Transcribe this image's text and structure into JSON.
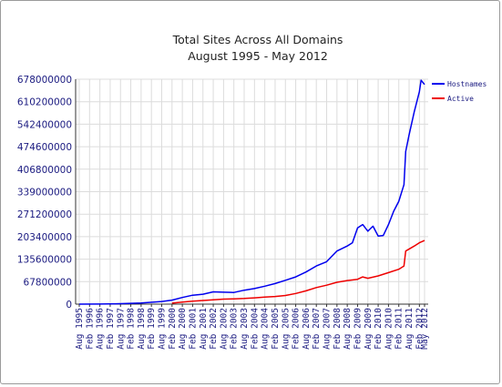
{
  "chart_data": {
    "type": "line",
    "title": "Total Sites Across All Domains",
    "subtitle": "August 1995 - May 2012",
    "ylim": [
      0,
      678000000
    ],
    "y_ticks": [
      0,
      67800000,
      135600000,
      203400000,
      271200000,
      339000000,
      406800000,
      474600000,
      542400000,
      610200000,
      678000000
    ],
    "y_tick_labels": [
      "0",
      "67800000",
      "135600000",
      "203400000",
      "271200000",
      "339000000",
      "406800000",
      "474600000",
      "542400000",
      "610200000",
      "678000000"
    ],
    "x_tick_labels": [
      "Aug 1995",
      "Feb 1996",
      "Aug 1996",
      "Feb 1997",
      "Aug 1997",
      "Feb 1998",
      "Aug 1998",
      "Feb 1999",
      "Aug 1999",
      "Feb 2000",
      "Aug 2000",
      "Feb 2001",
      "Aug 2001",
      "Feb 2002",
      "Aug 2002",
      "Feb 2003",
      "Aug 2003",
      "Feb 2004",
      "Aug 2004",
      "Feb 2005",
      "Aug 2005",
      "Feb 2006",
      "Aug 2006",
      "Feb 2007",
      "Aug 2007",
      "Feb 2008",
      "Aug 2008",
      "Feb 2009",
      "Aug 2009",
      "Feb 2010",
      "Aug 2010",
      "Feb 2011",
      "Aug 2011",
      "Feb 2012",
      "May 2012"
    ],
    "grid": true,
    "legend_position": "right",
    "series": [
      {
        "name": "Hostnames",
        "color": "#0000ee",
        "points": [
          [
            "1995-08",
            20000
          ],
          [
            "1996-08",
            300000
          ],
          [
            "1997-08",
            1500000
          ],
          [
            "1998-08",
            3500000
          ],
          [
            "1999-08",
            8000000
          ],
          [
            "2000-02",
            12000000
          ],
          [
            "2000-08",
            20000000
          ],
          [
            "2001-02",
            27000000
          ],
          [
            "2001-08",
            30000000
          ],
          [
            "2002-02",
            37000000
          ],
          [
            "2002-08",
            36000000
          ],
          [
            "2003-02",
            35000000
          ],
          [
            "2003-08",
            42000000
          ],
          [
            "2004-02",
            47000000
          ],
          [
            "2004-08",
            54000000
          ],
          [
            "2005-02",
            62000000
          ],
          [
            "2005-08",
            72000000
          ],
          [
            "2006-02",
            82000000
          ],
          [
            "2006-08",
            97000000
          ],
          [
            "2007-02",
            115000000
          ],
          [
            "2007-08",
            128000000
          ],
          [
            "2008-02",
            160000000
          ],
          [
            "2008-08",
            175000000
          ],
          [
            "2008-11",
            185000000
          ],
          [
            "2009-02",
            230000000
          ],
          [
            "2009-05",
            240000000
          ],
          [
            "2009-08",
            220000000
          ],
          [
            "2009-11",
            235000000
          ],
          [
            "2010-02",
            205000000
          ],
          [
            "2010-05",
            207000000
          ],
          [
            "2010-08",
            240000000
          ],
          [
            "2010-11",
            280000000
          ],
          [
            "2011-02",
            310000000
          ],
          [
            "2011-05",
            360000000
          ],
          [
            "2011-06",
            460000000
          ],
          [
            "2011-08",
            510000000
          ],
          [
            "2011-11",
            580000000
          ],
          [
            "2012-02",
            640000000
          ],
          [
            "2012-03",
            675000000
          ],
          [
            "2012-05",
            662000000
          ]
        ]
      },
      {
        "name": "Active",
        "color": "#ee0000",
        "points": [
          [
            "2000-02",
            3000000
          ],
          [
            "2000-08",
            6000000
          ],
          [
            "2001-02",
            9000000
          ],
          [
            "2001-08",
            11000000
          ],
          [
            "2002-02",
            13000000
          ],
          [
            "2002-08",
            15000000
          ],
          [
            "2003-02",
            16000000
          ],
          [
            "2003-08",
            17000000
          ],
          [
            "2004-02",
            19000000
          ],
          [
            "2004-08",
            21000000
          ],
          [
            "2005-02",
            23000000
          ],
          [
            "2005-08",
            26000000
          ],
          [
            "2006-02",
            32000000
          ],
          [
            "2006-08",
            40000000
          ],
          [
            "2007-02",
            50000000
          ],
          [
            "2007-08",
            57000000
          ],
          [
            "2008-02",
            66000000
          ],
          [
            "2008-08",
            71000000
          ],
          [
            "2009-02",
            75000000
          ],
          [
            "2009-05",
            82000000
          ],
          [
            "2009-08",
            78000000
          ],
          [
            "2010-02",
            85000000
          ],
          [
            "2010-08",
            95000000
          ],
          [
            "2011-02",
            105000000
          ],
          [
            "2011-05",
            115000000
          ],
          [
            "2011-06",
            160000000
          ],
          [
            "2011-11",
            175000000
          ],
          [
            "2012-02",
            185000000
          ],
          [
            "2012-05",
            192000000
          ]
        ]
      }
    ]
  }
}
